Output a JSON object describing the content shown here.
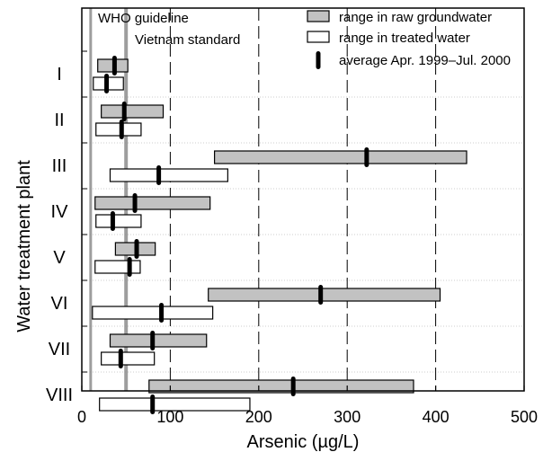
{
  "chart_data": {
    "type": "bar",
    "subtype": "floating-range",
    "orientation": "horizontal",
    "xlabel": "Arsenic (µg/L)",
    "ylabel": "Water treatment plant",
    "xlim": [
      0,
      500
    ],
    "xticks": [
      "0",
      "100",
      "200",
      "300",
      "400",
      "500"
    ],
    "gridlines": "vertical-dashed",
    "legend_position": "top-right",
    "legend": {
      "raw_label": "range in raw groundwater",
      "treated_label": "range in treated water",
      "avg_label": "average Apr. 1999–Jul. 2000"
    },
    "reference_lines": [
      {
        "label": "WHO guideline",
        "value": 10
      },
      {
        "label": "Vietnam standard",
        "value": 50
      }
    ],
    "categories": [
      "I",
      "II",
      "III",
      "IV",
      "V",
      "VI",
      "VII",
      "VIII"
    ],
    "series": [
      {
        "name": "range in raw groundwater",
        "ranges": [
          [
            18,
            52
          ],
          [
            22,
            92
          ],
          [
            150,
            435
          ],
          [
            15,
            145
          ],
          [
            38,
            83
          ],
          [
            143,
            405
          ],
          [
            32,
            141
          ],
          [
            76,
            375
          ]
        ],
        "averages": [
          37,
          48,
          322,
          60,
          62,
          270,
          80,
          239
        ]
      },
      {
        "name": "range in treated water",
        "ranges": [
          [
            13,
            47
          ],
          [
            16,
            67
          ],
          [
            32,
            165
          ],
          [
            16,
            67
          ],
          [
            15,
            66
          ],
          [
            12,
            148
          ],
          [
            22,
            82
          ],
          [
            20,
            190
          ]
        ],
        "averages": [
          28,
          45,
          87,
          35,
          54,
          90,
          44,
          80
        ]
      }
    ]
  },
  "colors": {
    "raw_fill": "#c2c2c2",
    "treated_fill": "#ffffff",
    "average_marker": "#000000",
    "grid": "#000000",
    "reference_line": "#8c8c8c"
  }
}
